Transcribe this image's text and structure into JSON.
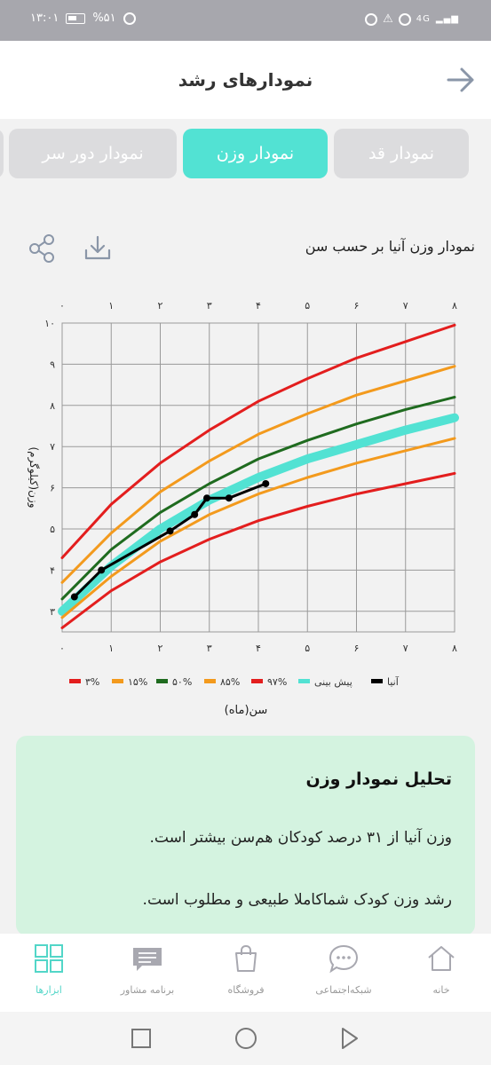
{
  "status_bar": {
    "time": "۱۳:۰۱",
    "battery": "%۵۱",
    "network": "4G"
  },
  "header": {
    "title": "نمودارهای رشد"
  },
  "tabs": [
    {
      "label": "نمودار قد",
      "active": false
    },
    {
      "label": "نمودار وزن",
      "active": true
    },
    {
      "label": "نمودار دور سر",
      "active": false
    }
  ],
  "chart_header": {
    "title": "نمودار وزن آنیا بر حسب سن"
  },
  "chart_data": {
    "type": "line",
    "title": "نمودار وزن آنیا بر حسب سن",
    "xlabel": "سن(ماه)",
    "ylabel": "وزن(کیلوگرم)",
    "xlim": [
      0,
      8
    ],
    "ylim": [
      2.5,
      10
    ],
    "x_ticks": [
      "۰",
      "۱",
      "۲",
      "۳",
      "۴",
      "۵",
      "۶",
      "۷",
      "۸"
    ],
    "y_ticks": [
      "۳",
      "۴",
      "۵",
      "۶",
      "۷",
      "۸",
      "۹",
      "۱۰"
    ],
    "grid": true,
    "legend_position": "bottom",
    "colors": {
      "red": "#e31e1e",
      "orange": "#f39a1d",
      "green": "#1f6b1f",
      "teal": "#52e2d3",
      "black": "#000000"
    },
    "x": [
      0,
      1,
      2,
      3,
      4,
      5,
      6,
      7,
      8
    ],
    "series": [
      {
        "name": "۹۷%",
        "color": "#e31e1e",
        "values": [
          4.3,
          5.6,
          6.6,
          7.4,
          8.1,
          8.65,
          9.15,
          9.55,
          9.95
        ]
      },
      {
        "name": "۸۵%",
        "color": "#f39a1d",
        "values": [
          3.7,
          4.9,
          5.9,
          6.65,
          7.3,
          7.8,
          8.25,
          8.6,
          8.95
        ]
      },
      {
        "name": "۵۰%",
        "color": "#1f6b1f",
        "values": [
          3.3,
          4.5,
          5.4,
          6.1,
          6.7,
          7.15,
          7.55,
          7.9,
          8.2
        ]
      },
      {
        "name": "پیش بینی",
        "color": "#52e2d3",
        "values": [
          3.0,
          4.1,
          5.0,
          5.7,
          6.25,
          6.7,
          7.05,
          7.4,
          7.7
        ]
      },
      {
        "name": "۱۵%",
        "color": "#f39a1d",
        "values": [
          2.85,
          3.85,
          4.7,
          5.35,
          5.85,
          6.25,
          6.6,
          6.9,
          7.2
        ]
      },
      {
        "name": "۳%",
        "color": "#e31e1e",
        "values": [
          2.6,
          3.5,
          4.2,
          4.75,
          5.2,
          5.55,
          5.85,
          6.1,
          6.35
        ]
      }
    ],
    "child_series": {
      "name": "آنیا",
      "color": "#000000",
      "x": [
        0.25,
        0.8,
        2.2,
        2.7,
        2.95,
        3.4,
        4.15
      ],
      "values": [
        3.35,
        4.0,
        4.95,
        5.35,
        5.75,
        5.75,
        6.1
      ]
    }
  },
  "analysis": {
    "title": "تحلیل نمودار وزن",
    "line1": "وزن آنیا از ۳۱ درصد کودکان هم‌سن بیشتر است.",
    "line2": "رشد وزن کودک شماکاملا طبیعی و مطلوب است."
  },
  "bottom_nav": [
    {
      "label": "خانه",
      "icon": "home-icon",
      "active": false
    },
    {
      "label": "شبکه‌اجتماعی",
      "icon": "chat-bubble-icon",
      "active": false
    },
    {
      "label": "فروشگاه",
      "icon": "shopping-bag-icon",
      "active": false
    },
    {
      "label": "برنامه مشاور",
      "icon": "message-icon",
      "active": false
    },
    {
      "label": "ابزارها",
      "icon": "grid-icon",
      "active": true
    }
  ]
}
